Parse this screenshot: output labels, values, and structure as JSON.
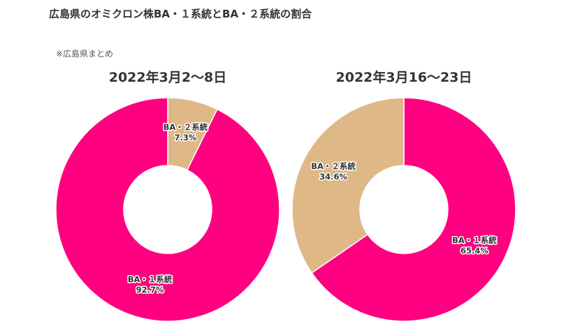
{
  "page": {
    "title": "広島県のオミクロン株BA・１系統とBA・２系統の割合",
    "note": "※広島県まとめ"
  },
  "chart_data": [
    {
      "type": "pie",
      "title": "2022年3月2〜8日",
      "slices": [
        {
          "label": "BA・２系統",
          "value": 7.3,
          "display": "7.3%",
          "color": "#DEB887"
        },
        {
          "label": "BA・１系統",
          "value": 92.7,
          "display": "92.7%",
          "color": "#FF0080"
        }
      ]
    },
    {
      "type": "pie",
      "title": "2022年3月16〜23日",
      "slices": [
        {
          "label": "BA・１系統",
          "value": 65.4,
          "display": "65.4%",
          "color": "#FF0080"
        },
        {
          "label": "BA・２系統",
          "value": 34.6,
          "display": "34.6%",
          "color": "#DEB887"
        }
      ]
    }
  ]
}
